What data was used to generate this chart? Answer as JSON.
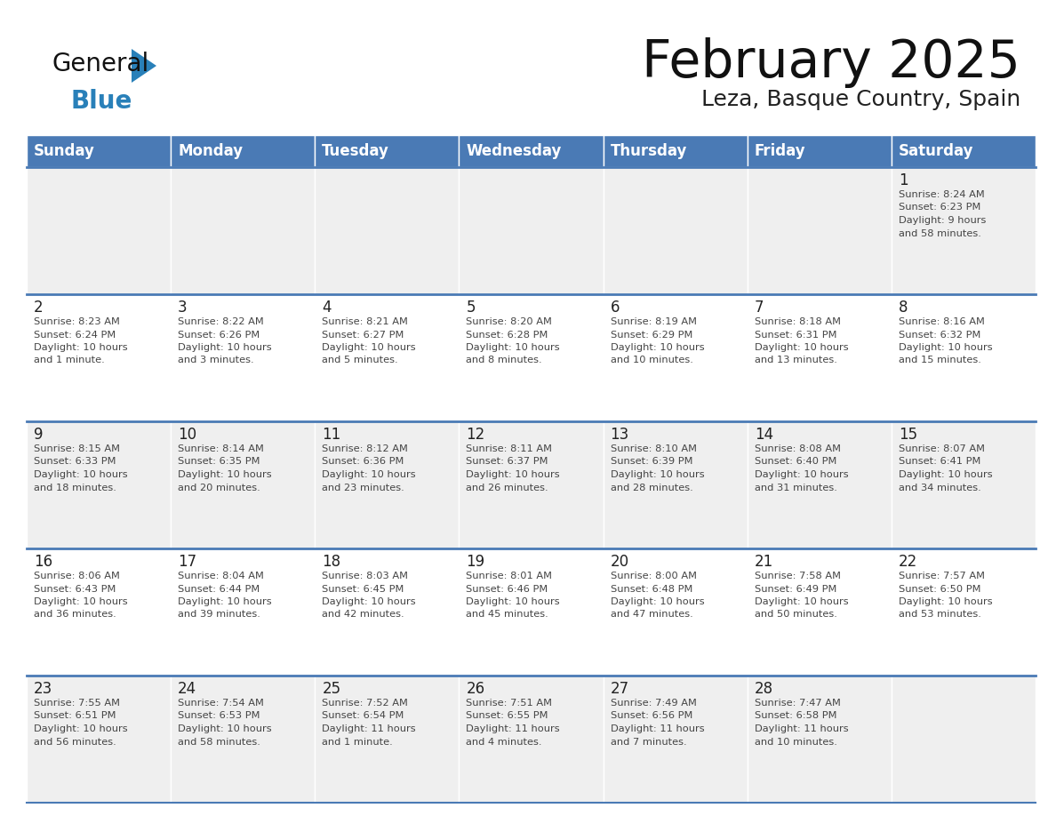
{
  "title": "February 2025",
  "subtitle": "Leza, Basque Country, Spain",
  "days_of_week": [
    "Sunday",
    "Monday",
    "Tuesday",
    "Wednesday",
    "Thursday",
    "Friday",
    "Saturday"
  ],
  "header_bg": "#4a7ab5",
  "header_text": "#ffffff",
  "row_bg_light": "#efefef",
  "row_bg_white": "#ffffff",
  "cell_text": "#444444",
  "day_num_color": "#222222",
  "border_color": "#4a7ab5",
  "logo_general_color": "#111111",
  "logo_blue_color": "#2980b9",
  "logo_triangle_color": "#2980b9",
  "calendar_data": [
    [
      null,
      null,
      null,
      null,
      null,
      null,
      {
        "day": 1,
        "sunrise": "8:24 AM",
        "sunset": "6:23 PM",
        "dl1": "Daylight: 9 hours",
        "dl2": "and 58 minutes."
      }
    ],
    [
      {
        "day": 2,
        "sunrise": "8:23 AM",
        "sunset": "6:24 PM",
        "dl1": "Daylight: 10 hours",
        "dl2": "and 1 minute."
      },
      {
        "day": 3,
        "sunrise": "8:22 AM",
        "sunset": "6:26 PM",
        "dl1": "Daylight: 10 hours",
        "dl2": "and 3 minutes."
      },
      {
        "day": 4,
        "sunrise": "8:21 AM",
        "sunset": "6:27 PM",
        "dl1": "Daylight: 10 hours",
        "dl2": "and 5 minutes."
      },
      {
        "day": 5,
        "sunrise": "8:20 AM",
        "sunset": "6:28 PM",
        "dl1": "Daylight: 10 hours",
        "dl2": "and 8 minutes."
      },
      {
        "day": 6,
        "sunrise": "8:19 AM",
        "sunset": "6:29 PM",
        "dl1": "Daylight: 10 hours",
        "dl2": "and 10 minutes."
      },
      {
        "day": 7,
        "sunrise": "8:18 AM",
        "sunset": "6:31 PM",
        "dl1": "Daylight: 10 hours",
        "dl2": "and 13 minutes."
      },
      {
        "day": 8,
        "sunrise": "8:16 AM",
        "sunset": "6:32 PM",
        "dl1": "Daylight: 10 hours",
        "dl2": "and 15 minutes."
      }
    ],
    [
      {
        "day": 9,
        "sunrise": "8:15 AM",
        "sunset": "6:33 PM",
        "dl1": "Daylight: 10 hours",
        "dl2": "and 18 minutes."
      },
      {
        "day": 10,
        "sunrise": "8:14 AM",
        "sunset": "6:35 PM",
        "dl1": "Daylight: 10 hours",
        "dl2": "and 20 minutes."
      },
      {
        "day": 11,
        "sunrise": "8:12 AM",
        "sunset": "6:36 PM",
        "dl1": "Daylight: 10 hours",
        "dl2": "and 23 minutes."
      },
      {
        "day": 12,
        "sunrise": "8:11 AM",
        "sunset": "6:37 PM",
        "dl1": "Daylight: 10 hours",
        "dl2": "and 26 minutes."
      },
      {
        "day": 13,
        "sunrise": "8:10 AM",
        "sunset": "6:39 PM",
        "dl1": "Daylight: 10 hours",
        "dl2": "and 28 minutes."
      },
      {
        "day": 14,
        "sunrise": "8:08 AM",
        "sunset": "6:40 PM",
        "dl1": "Daylight: 10 hours",
        "dl2": "and 31 minutes."
      },
      {
        "day": 15,
        "sunrise": "8:07 AM",
        "sunset": "6:41 PM",
        "dl1": "Daylight: 10 hours",
        "dl2": "and 34 minutes."
      }
    ],
    [
      {
        "day": 16,
        "sunrise": "8:06 AM",
        "sunset": "6:43 PM",
        "dl1": "Daylight: 10 hours",
        "dl2": "and 36 minutes."
      },
      {
        "day": 17,
        "sunrise": "8:04 AM",
        "sunset": "6:44 PM",
        "dl1": "Daylight: 10 hours",
        "dl2": "and 39 minutes."
      },
      {
        "day": 18,
        "sunrise": "8:03 AM",
        "sunset": "6:45 PM",
        "dl1": "Daylight: 10 hours",
        "dl2": "and 42 minutes."
      },
      {
        "day": 19,
        "sunrise": "8:01 AM",
        "sunset": "6:46 PM",
        "dl1": "Daylight: 10 hours",
        "dl2": "and 45 minutes."
      },
      {
        "day": 20,
        "sunrise": "8:00 AM",
        "sunset": "6:48 PM",
        "dl1": "Daylight: 10 hours",
        "dl2": "and 47 minutes."
      },
      {
        "day": 21,
        "sunrise": "7:58 AM",
        "sunset": "6:49 PM",
        "dl1": "Daylight: 10 hours",
        "dl2": "and 50 minutes."
      },
      {
        "day": 22,
        "sunrise": "7:57 AM",
        "sunset": "6:50 PM",
        "dl1": "Daylight: 10 hours",
        "dl2": "and 53 minutes."
      }
    ],
    [
      {
        "day": 23,
        "sunrise": "7:55 AM",
        "sunset": "6:51 PM",
        "dl1": "Daylight: 10 hours",
        "dl2": "and 56 minutes."
      },
      {
        "day": 24,
        "sunrise": "7:54 AM",
        "sunset": "6:53 PM",
        "dl1": "Daylight: 10 hours",
        "dl2": "and 58 minutes."
      },
      {
        "day": 25,
        "sunrise": "7:52 AM",
        "sunset": "6:54 PM",
        "dl1": "Daylight: 11 hours",
        "dl2": "and 1 minute."
      },
      {
        "day": 26,
        "sunrise": "7:51 AM",
        "sunset": "6:55 PM",
        "dl1": "Daylight: 11 hours",
        "dl2": "and 4 minutes."
      },
      {
        "day": 27,
        "sunrise": "7:49 AM",
        "sunset": "6:56 PM",
        "dl1": "Daylight: 11 hours",
        "dl2": "and 7 minutes."
      },
      {
        "day": 28,
        "sunrise": "7:47 AM",
        "sunset": "6:58 PM",
        "dl1": "Daylight: 11 hours",
        "dl2": "and 10 minutes."
      },
      null
    ]
  ]
}
